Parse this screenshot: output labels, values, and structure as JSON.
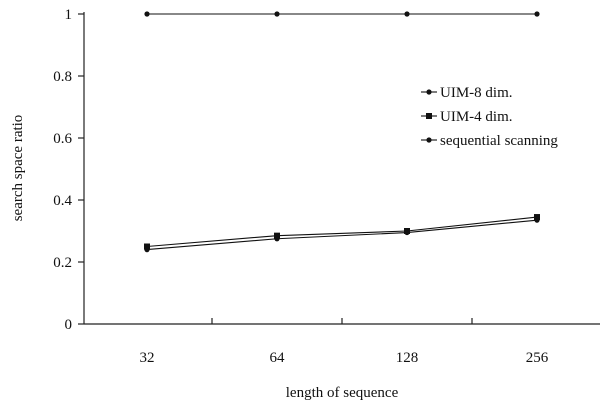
{
  "chart_data": {
    "type": "line",
    "title": "",
    "xlabel": "length of sequence",
    "ylabel": "search space ratio",
    "categories": [
      "32",
      "64",
      "128",
      "256"
    ],
    "ylim": [
      0,
      1
    ],
    "yticks": [
      0,
      0.2,
      0.4,
      0.6,
      0.8,
      1
    ],
    "ytick_labels": [
      "0",
      "0.2",
      "0.4",
      "0.6",
      "0.8",
      "1"
    ],
    "grid": false,
    "legend_position": "right",
    "series": [
      {
        "name": "UIM-8 dim.",
        "values": [
          0.24,
          0.275,
          0.295,
          0.335
        ],
        "marker": "circle",
        "color": "#111111"
      },
      {
        "name": "UIM-4 dim.",
        "values": [
          0.25,
          0.285,
          0.3,
          0.345
        ],
        "marker": "square",
        "color": "#111111"
      },
      {
        "name": "sequential scanning",
        "values": [
          1,
          1,
          1,
          1
        ],
        "marker": "circle",
        "color": "#111111"
      }
    ]
  }
}
